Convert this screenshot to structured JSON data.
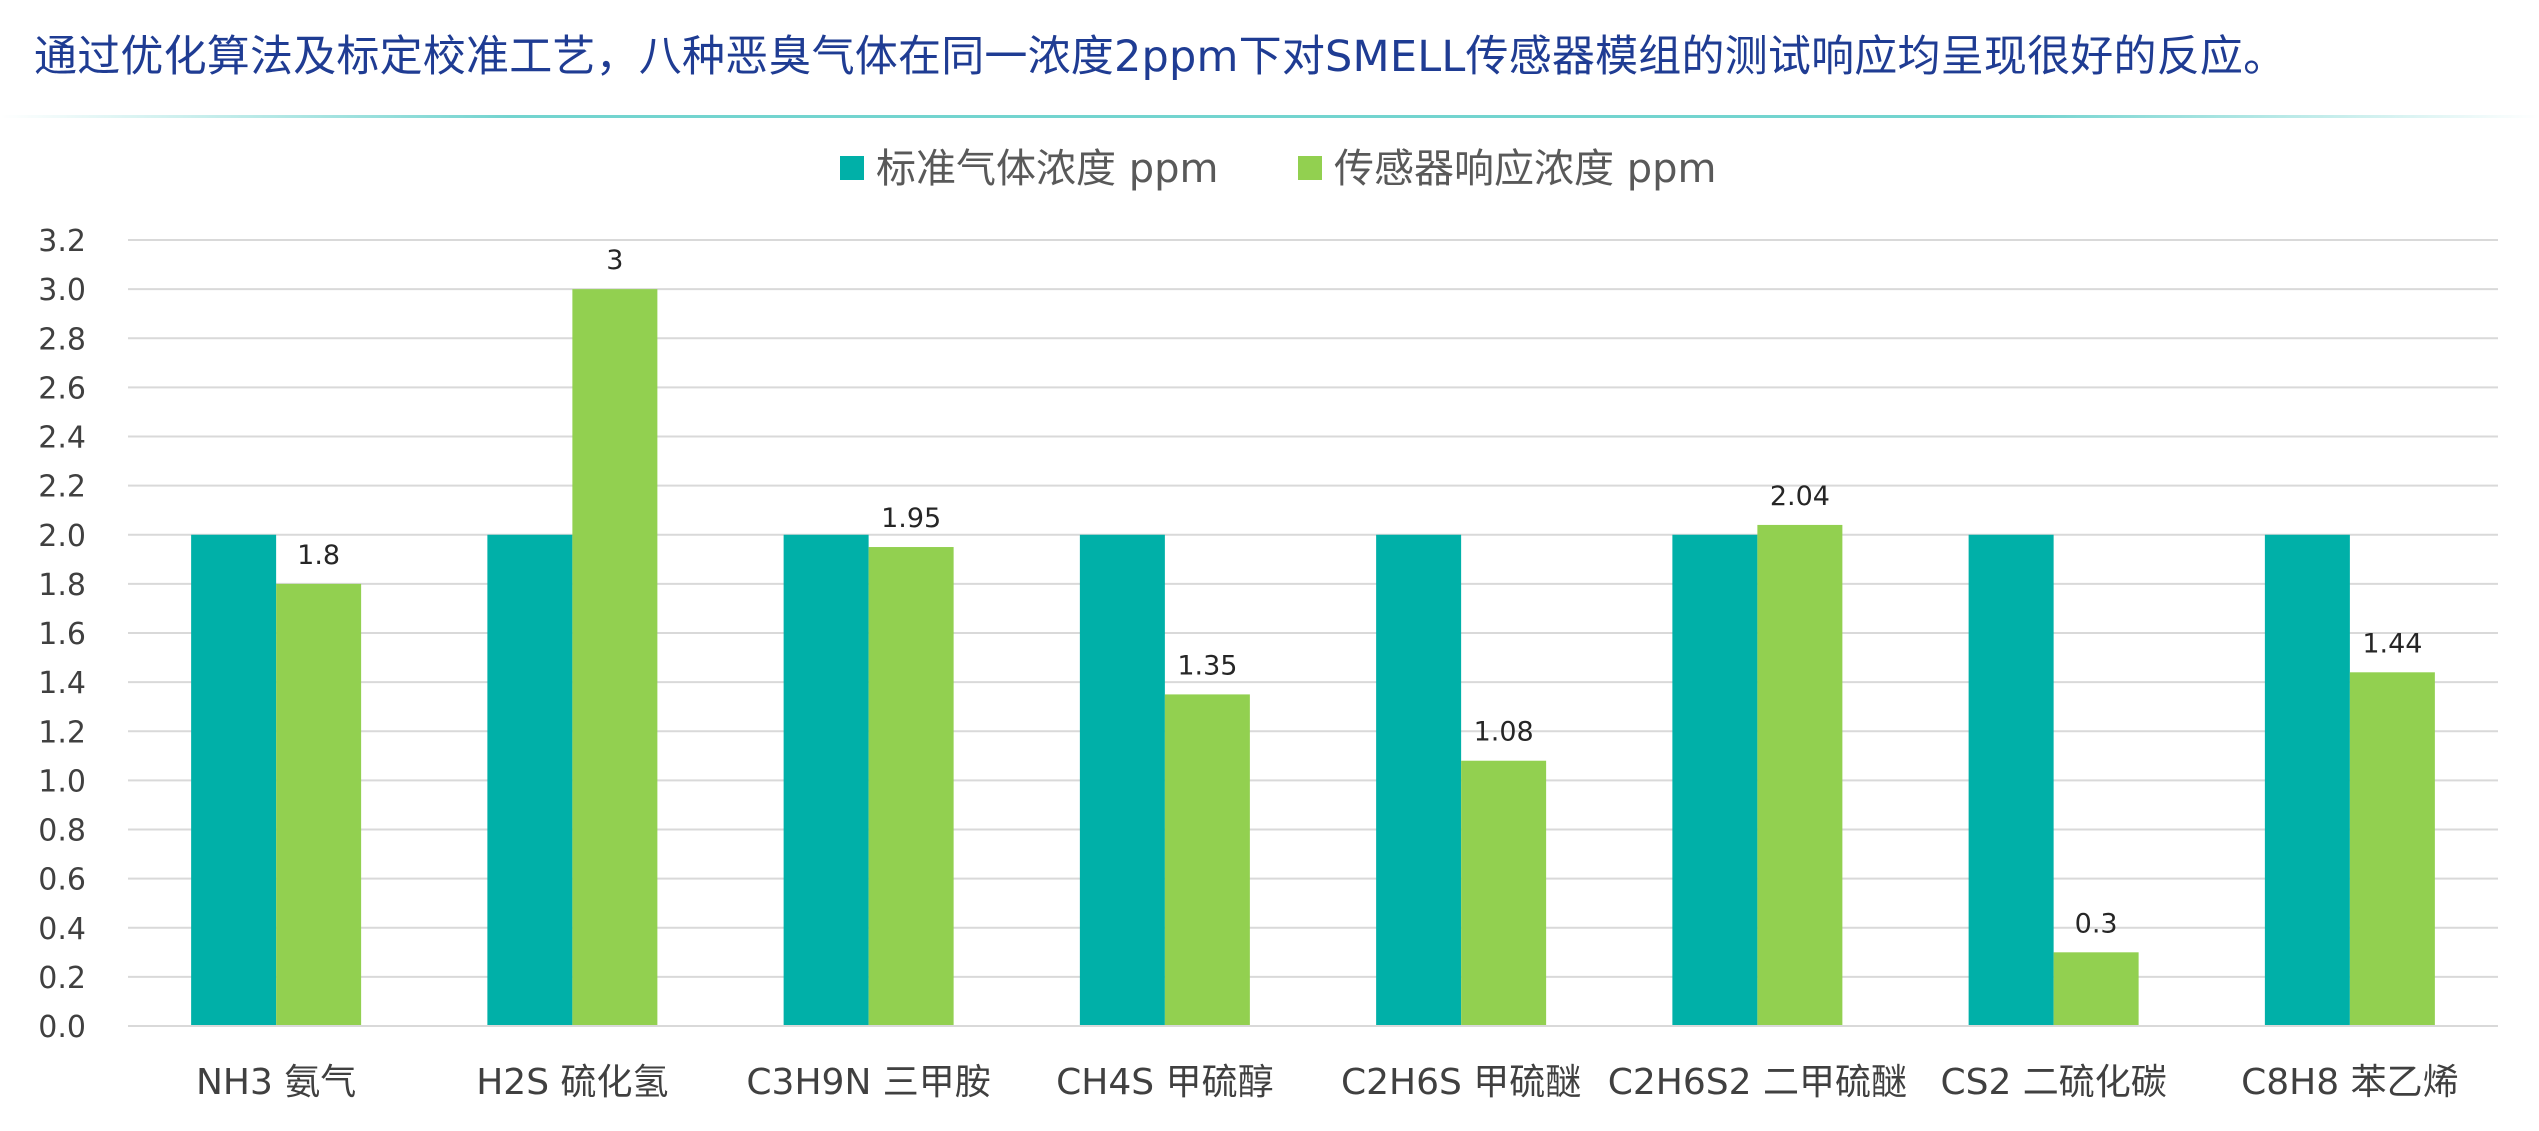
{
  "header": {
    "headline": "通过优化算法及标定校准工艺，八种恶臭气体在同一浓度2ppm下对SMELL传感器模组的测试响应均呈现很好的反应。"
  },
  "colors": {
    "headline": "#1f3c93",
    "series_1": "#00b0a8",
    "series_2": "#92d050",
    "gridline": "#d9d9d9",
    "axis_text": "#404040"
  },
  "chart_data": {
    "type": "bar",
    "title": "",
    "xlabel": "",
    "ylabel": "",
    "ylim": [
      0,
      3.2
    ],
    "y_ticks": [
      "0.0",
      "0.2",
      "0.4",
      "0.6",
      "0.8",
      "1.0",
      "1.2",
      "1.4",
      "1.6",
      "1.8",
      "2.0",
      "2.2",
      "2.4",
      "2.6",
      "2.8",
      "3.0",
      "3.2"
    ],
    "grid": true,
    "legend_position": "top-center",
    "categories": [
      "NH3 氨气",
      "H2S 硫化氢",
      "C3H9N 三甲胺",
      "CH4S 甲硫醇",
      "C2H6S 甲硫醚",
      "C2H6S2 二甲硫醚",
      "CS2 二硫化碳",
      "C8H8 苯乙烯"
    ],
    "series": [
      {
        "name": "标准气体浓度 ppm",
        "values": [
          2,
          2,
          2,
          2,
          2,
          2,
          2,
          2
        ],
        "data_labels": [
          "",
          "",
          "",
          "",
          "",
          "",
          "",
          ""
        ]
      },
      {
        "name": "传感器响应浓度 ppm",
        "values": [
          1.8,
          3,
          1.95,
          1.35,
          1.08,
          2.04,
          0.3,
          1.44
        ],
        "data_labels": [
          "1.8",
          "3",
          "1.95",
          "1.35",
          "1.08",
          "2.04",
          "0.3",
          "1.44"
        ]
      }
    ]
  }
}
